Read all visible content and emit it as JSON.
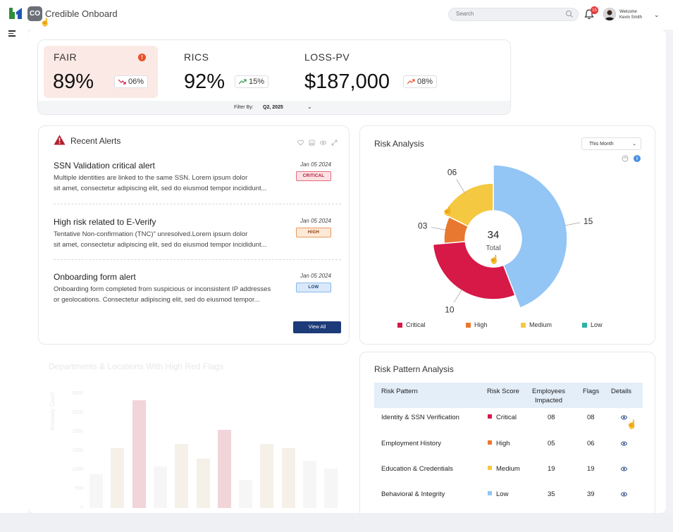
{
  "header": {
    "logo": "logo-mark",
    "co_badge": "CO",
    "app_title": "Credible Onboard",
    "search_placeholder": "Search",
    "notifications_count": "15",
    "welcome_label": "Welcome",
    "user_name": "Kevin Smith"
  },
  "kpis": [
    {
      "label": "FAIR",
      "value": "89%",
      "trend": "06%",
      "trend_direction": "down"
    },
    {
      "label": "RICS",
      "value": "92%",
      "trend": "15%",
      "trend_direction": "up"
    },
    {
      "label": "LOSS-PV",
      "value": "$187,000",
      "trend": "08%",
      "trend_direction": "up"
    }
  ],
  "fair_alert_icon": "!",
  "filter": {
    "label": "Filter By:",
    "value": "Q2, 2025"
  },
  "alerts": {
    "title": "Recent Alerts",
    "items": [
      {
        "title": "SSN Validation critical alert",
        "line1": "Multiple identities are linked to the same SSN. Lorem ipsum dolor",
        "line2": "sit amet, consectetur adipiscing elit, sed do eiusmod tempor incididunt...",
        "date": "Jan 05 2024",
        "severity": "CRITICAL"
      },
      {
        "title": "High risk related to E-Verify",
        "line1": "Tentative Non-confirmation (TNC)\" unresolved.Lorem ipsum dolor",
        "line2": "sit amet, consectetur adipiscing elit, sed do eiusmod tempor incididunt...",
        "date": "Jan 05 2024",
        "severity": "HIGH"
      },
      {
        "title": "Onboarding form alert",
        "line1": "Onboarding form completed from suspicious or  inconsistent IP addresses",
        "line2": "or geolocations. Consectetur adipiscing elit, sed do eiusmod tempor...",
        "date": "Jan 05 2024",
        "severity": "LOW"
      }
    ],
    "view_all": "View All"
  },
  "risk_analysis": {
    "title": "Risk Analysis",
    "period": "This Month",
    "total_value": "34",
    "total_label": "Total",
    "colors": {
      "critical": "#d61947",
      "high": "#e8782f",
      "medium": "#f5c842",
      "low": "#93c5f5",
      "low_legend": "#2bb3a3"
    }
  },
  "chart_data": {
    "type": "pie",
    "title": "Risk Analysis",
    "categories": [
      "Critical",
      "High",
      "Medium",
      "Low"
    ],
    "values": [
      10,
      3,
      6,
      15
    ],
    "data_labels": [
      "10",
      "03",
      "06",
      "15"
    ],
    "total": 34,
    "legend": "bottom"
  },
  "departments": {
    "title": "Departments & Locations With High Red Flags",
    "ylabel": "Anomaly Count",
    "yticks": [
      "3000",
      "2500",
      "2000",
      "1500",
      "1000",
      "500",
      "0"
    ]
  },
  "pattern": {
    "title": "Risk Pattern Analysis",
    "headers": {
      "pattern": "Risk Pattern",
      "score": "Risk Score",
      "employees_1": "Employees",
      "employees_2": "Impacted",
      "flags": "Flags",
      "details": "Details"
    },
    "rows": [
      {
        "pattern": "Identity & SSN Verification",
        "score": "Critical",
        "employees": "08",
        "flags": "08"
      },
      {
        "pattern": "Employment History",
        "score": "High",
        "employees": "05",
        "flags": "06"
      },
      {
        "pattern": "Education & Credentials",
        "score": "Medium",
        "employees": "19",
        "flags": "19"
      },
      {
        "pattern": "Behavioral & Integrity",
        "score": "Low",
        "employees": "35",
        "flags": "39"
      }
    ]
  }
}
